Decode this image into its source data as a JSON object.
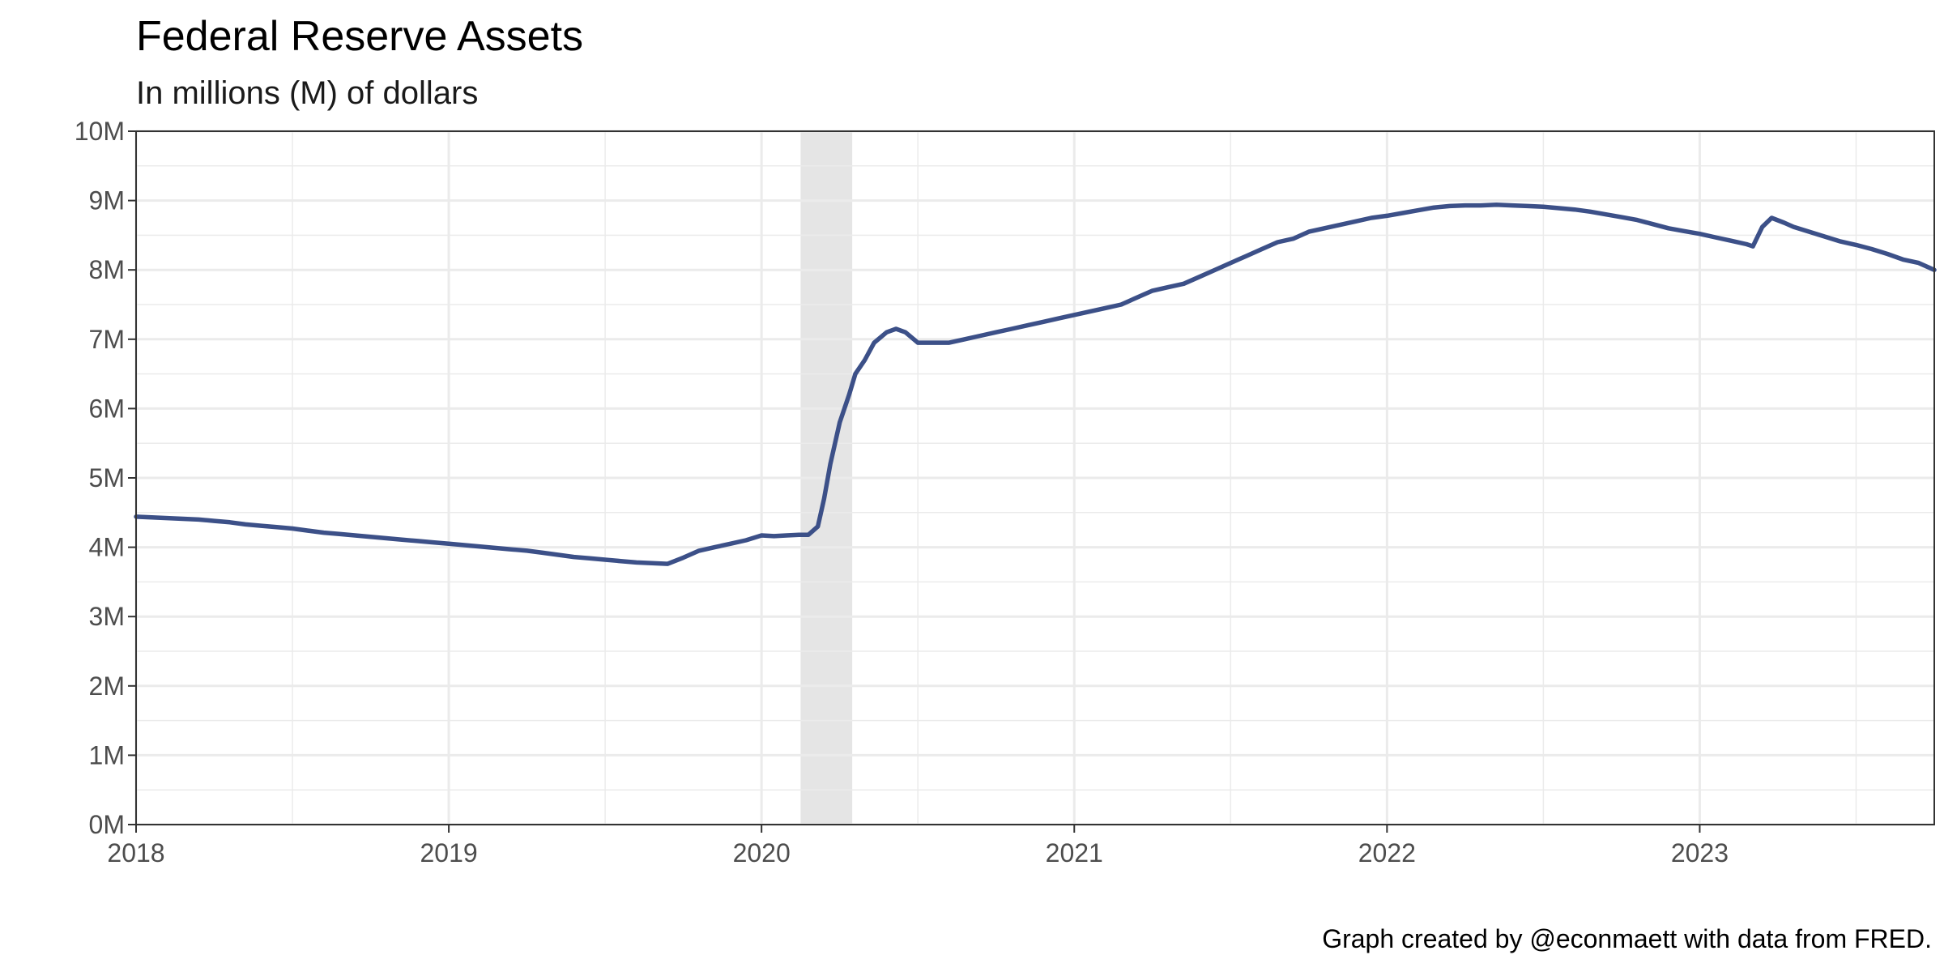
{
  "chart_data": {
    "type": "line",
    "title": "Federal Reserve Assets",
    "subtitle": "In millions (M) of dollars",
    "caption": "Graph created by @econmaett with data from FRED.",
    "xlabel": "",
    "ylabel": "",
    "xlim": [
      2018.0,
      2023.75
    ],
    "ylim": [
      0,
      10
    ],
    "x_ticks": [
      {
        "value": 2018,
        "label": "2018"
      },
      {
        "value": 2019,
        "label": "2019"
      },
      {
        "value": 2020,
        "label": "2020"
      },
      {
        "value": 2021,
        "label": "2021"
      },
      {
        "value": 2022,
        "label": "2022"
      },
      {
        "value": 2023,
        "label": "2023"
      }
    ],
    "y_ticks": [
      {
        "value": 0,
        "label": "0M"
      },
      {
        "value": 1,
        "label": "1M"
      },
      {
        "value": 2,
        "label": "2M"
      },
      {
        "value": 3,
        "label": "3M"
      },
      {
        "value": 4,
        "label": "4M"
      },
      {
        "value": 5,
        "label": "5M"
      },
      {
        "value": 6,
        "label": "6M"
      },
      {
        "value": 7,
        "label": "7M"
      },
      {
        "value": 8,
        "label": "8M"
      },
      {
        "value": 9,
        "label": "9M"
      },
      {
        "value": 10,
        "label": "10M"
      }
    ],
    "grid": true,
    "legend": "none",
    "colors": {
      "line": "#3c5088",
      "recession": "#e5e5e5",
      "grid": "#ebebeb",
      "border": "#333333"
    },
    "shaded_regions": [
      {
        "x_start": 2020.125,
        "x_end": 2020.29
      }
    ],
    "series": [
      {
        "x": [
          2018.0,
          2018.05,
          2018.1,
          2018.15,
          2018.2,
          2018.25,
          2018.3,
          2018.35,
          2018.4,
          2018.45,
          2018.5,
          2018.55,
          2018.6,
          2018.65,
          2018.7,
          2018.75,
          2018.8,
          2018.85,
          2018.9,
          2018.95,
          2019.0,
          2019.05,
          2019.1,
          2019.15,
          2019.2,
          2019.25,
          2019.3,
          2019.35,
          2019.4,
          2019.45,
          2019.5,
          2019.55,
          2019.6,
          2019.65,
          2019.7,
          2019.75,
          2019.8,
          2019.85,
          2019.9,
          2019.95,
          2020.0,
          2020.04,
          2020.08,
          2020.12,
          2020.15,
          2020.18,
          2020.2,
          2020.22,
          2020.25,
          2020.28,
          2020.3,
          2020.33,
          2020.36,
          2020.4,
          2020.43,
          2020.46,
          2020.5,
          2020.55,
          2020.6,
          2020.65,
          2020.7,
          2020.75,
          2020.8,
          2020.85,
          2020.9,
          2020.95,
          2021.0,
          2021.05,
          2021.1,
          2021.15,
          2021.2,
          2021.25,
          2021.3,
          2021.35,
          2021.4,
          2021.45,
          2021.5,
          2021.55,
          2021.6,
          2021.65,
          2021.7,
          2021.75,
          2021.8,
          2021.85,
          2021.9,
          2021.95,
          2022.0,
          2022.05,
          2022.1,
          2022.15,
          2022.2,
          2022.25,
          2022.3,
          2022.35,
          2022.4,
          2022.45,
          2022.5,
          2022.55,
          2022.6,
          2022.65,
          2022.7,
          2022.75,
          2022.8,
          2022.85,
          2022.9,
          2022.95,
          2023.0,
          2023.05,
          2023.1,
          2023.15,
          2023.17,
          2023.2,
          2023.23,
          2023.27,
          2023.3,
          2023.35,
          2023.4,
          2023.45,
          2023.5,
          2023.55,
          2023.6,
          2023.65,
          2023.7,
          2023.75
        ],
        "values": [
          4.44,
          4.43,
          4.42,
          4.41,
          4.4,
          4.38,
          4.36,
          4.33,
          4.31,
          4.29,
          4.27,
          4.24,
          4.21,
          4.19,
          4.17,
          4.15,
          4.13,
          4.11,
          4.09,
          4.07,
          4.05,
          4.03,
          4.01,
          3.99,
          3.97,
          3.95,
          3.92,
          3.89,
          3.86,
          3.84,
          3.82,
          3.8,
          3.78,
          3.77,
          3.76,
          3.85,
          3.95,
          4.0,
          4.05,
          4.1,
          4.17,
          4.16,
          4.17,
          4.18,
          4.18,
          4.3,
          4.7,
          5.2,
          5.8,
          6.2,
          6.5,
          6.7,
          6.95,
          7.1,
          7.15,
          7.1,
          6.95,
          6.95,
          6.95,
          7.0,
          7.05,
          7.1,
          7.15,
          7.2,
          7.25,
          7.3,
          7.35,
          7.4,
          7.45,
          7.5,
          7.6,
          7.7,
          7.75,
          7.8,
          7.9,
          8.0,
          8.1,
          8.2,
          8.3,
          8.4,
          8.45,
          8.55,
          8.6,
          8.65,
          8.7,
          8.75,
          8.78,
          8.82,
          8.86,
          8.9,
          8.92,
          8.93,
          8.93,
          8.94,
          8.93,
          8.92,
          8.91,
          8.89,
          8.87,
          8.84,
          8.8,
          8.76,
          8.72,
          8.66,
          8.6,
          8.56,
          8.52,
          8.47,
          8.42,
          8.37,
          8.34,
          8.62,
          8.75,
          8.68,
          8.62,
          8.55,
          8.48,
          8.41,
          8.36,
          8.3,
          8.23,
          8.15,
          8.1,
          8.0
        ]
      }
    ]
  }
}
